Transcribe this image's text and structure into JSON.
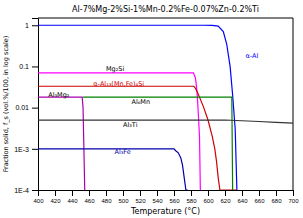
{
  "chart_data": {
    "type": "line",
    "title": "Al-7%Mg-2%Si-1%Mn-0.2%Fe-0.07%Zn-0.2%Ti",
    "x_label": "Temperature (°C)",
    "y_label": "Fraction solid, f_s (vol.%/100, in log scale)",
    "log": "y",
    "grid": false,
    "xlim": [
      400,
      700
    ],
    "xticks": [
      400,
      420,
      440,
      460,
      480,
      500,
      520,
      540,
      560,
      580,
      600,
      620,
      640,
      660,
      680,
      700
    ],
    "ylim": [
      0.0001,
      1.5
    ],
    "yticks": [
      {
        "value": 0.0001,
        "label": "1E-4"
      },
      {
        "value": 0.001,
        "label": "1E-3"
      },
      0.01,
      0.1,
      1
    ],
    "series": [
      {
        "color": "#0000ff",
        "x": [
          400,
          580,
          595,
          605,
          612,
          618,
          622,
          626,
          629,
          632,
          634
        ],
        "values": [
          1.0,
          1.0,
          1.0,
          0.99,
          0.95,
          0.7,
          0.35,
          0.1,
          0.02,
          0.003,
          0.0001
        ]
      },
      {
        "color": "#ff00ff",
        "x": [
          400,
          450,
          452,
          453,
          455,
          460,
          470,
          480,
          490,
          500,
          510,
          520,
          530,
          540,
          550,
          560,
          570,
          580,
          583,
          584,
          585,
          586,
          587,
          588,
          589,
          590,
          591
        ],
        "values": [
          0.07,
          0.07,
          0.07,
          0.07,
          0.07,
          0.07,
          0.07,
          0.07,
          0.07,
          0.07,
          0.07,
          0.07,
          0.07,
          0.07,
          0.07,
          0.07,
          0.07,
          0.07,
          0.07,
          0.06,
          0.055,
          0.04,
          0.025,
          0.012,
          0.005,
          0.002,
          0.0001
        ]
      },
      {
        "color": "#cc0000",
        "x": [
          400,
          450,
          452,
          460,
          470,
          480,
          490,
          500,
          510,
          520,
          530,
          540,
          550,
          560,
          570,
          580,
          583,
          584,
          585,
          587,
          590,
          595,
          600,
          605,
          608,
          610,
          612,
          614,
          630,
          632,
          634
        ],
        "values": [
          0.033,
          0.033,
          0.033,
          0.033,
          0.033,
          0.033,
          0.033,
          0.033,
          0.033,
          0.033,
          0.033,
          0.033,
          0.033,
          0.033,
          0.033,
          0.033,
          0.033,
          0.032,
          0.03,
          0.025,
          0.018,
          0.01,
          0.005,
          0.002,
          0.001,
          0.0005,
          0.0002,
          0.0001,
          0.0001,
          0.0001,
          0.0001
        ]
      },
      {
        "color": "#aa00aa",
        "x": [
          400,
          450,
          452,
          453,
          454,
          455
        ],
        "values": [
          0.018,
          0.018,
          0.018,
          0.01,
          0.001,
          0.0001
        ]
      },
      {
        "color": "#008000",
        "x": [
          453,
          460,
          470,
          480,
          490,
          500,
          510,
          520,
          530,
          540,
          550,
          560,
          570,
          580,
          590,
          600,
          610,
          620,
          625,
          628,
          629
        ],
        "values": [
          0.018,
          0.018,
          0.018,
          0.018,
          0.018,
          0.018,
          0.018,
          0.018,
          0.018,
          0.018,
          0.018,
          0.018,
          0.018,
          0.018,
          0.018,
          0.018,
          0.018,
          0.018,
          0.018,
          0.018,
          0.0001
        ]
      },
      {
        "color": "#333333",
        "x": [
          400,
          450,
          500,
          550,
          600,
          620,
          640,
          660,
          680,
          700
        ],
        "values": [
          0.005,
          0.005,
          0.005,
          0.005,
          0.005,
          0.005,
          0.0048,
          0.0046,
          0.0044,
          0.0042
        ]
      },
      {
        "color": "#0000aa",
        "x": [
          400,
          450,
          453,
          460,
          470,
          480,
          490,
          500,
          510,
          520,
          530,
          540,
          550,
          555,
          560,
          562,
          565,
          568,
          570,
          572,
          574,
          576
        ],
        "values": [
          0.001,
          0.001,
          0.001,
          0.001,
          0.001,
          0.001,
          0.001,
          0.001,
          0.001,
          0.001,
          0.001,
          0.001,
          0.001,
          0.001,
          0.001,
          0.0009,
          0.0008,
          0.0006,
          0.0004,
          0.0002,
          0.0001,
          0.0001
        ]
      }
    ],
    "annotations": [
      {
        "text": "α-Al",
        "x": 644,
        "y": 0.18,
        "color": "#0000ff"
      },
      {
        "text": "Mg₂Si",
        "x": 480,
        "y": 0.09,
        "color": "#000000"
      },
      {
        "text": "α-Al₁₃(Mn,Fe)₄Si",
        "x": 465,
        "y": 0.038,
        "color": "#cc0000"
      },
      {
        "text": "Al₃Mg₂",
        "x": 412,
        "y": 0.021,
        "color": "#000000"
      },
      {
        "text": "Al₆Mn",
        "x": 510,
        "y": 0.014,
        "color": "#000000"
      },
      {
        "text": "Al₃Ti",
        "x": 500,
        "y": 0.0038,
        "color": "#000000"
      },
      {
        "text": "Al₃Fe",
        "x": 490,
        "y": 0.00085,
        "color": "#0000aa"
      }
    ]
  }
}
